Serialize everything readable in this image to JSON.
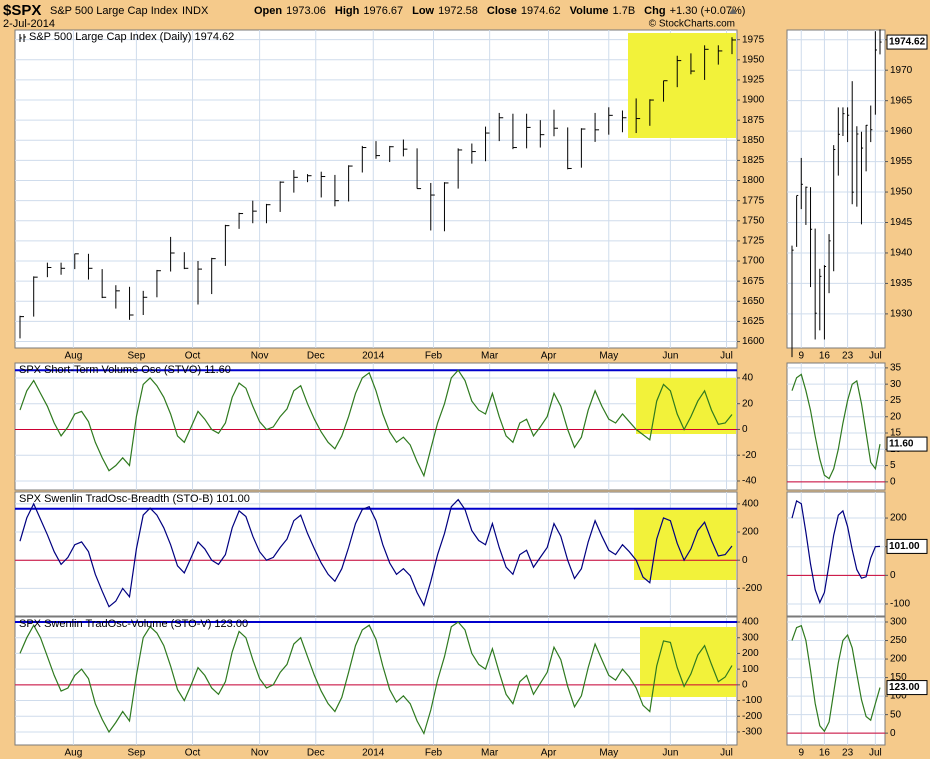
{
  "header": {
    "symbol": "$SPX",
    "name": "S&P 500 Large Cap Index",
    "exchange": "INDX",
    "date": "2-Jul-2014",
    "copyright": "© StockCharts.com",
    "quote": [
      {
        "label": "Open",
        "value": "1973.06"
      },
      {
        "label": "High",
        "value": "1976.67"
      },
      {
        "label": "Low",
        "value": "1972.58"
      },
      {
        "label": "Close",
        "value": "1974.62"
      },
      {
        "label": "Volume",
        "value": "1.7B"
      },
      {
        "label": "Chg",
        "value": "+1.30 (+0.07%)"
      }
    ]
  },
  "chart_data": [
    {
      "type": "hlc",
      "title": "S&P 500 Large Cap Index (Daily) 1974.62",
      "color": "#000000",
      "grid": true,
      "xlim": [
        0,
        52
      ],
      "ylim": [
        1592,
        1987
      ],
      "yticks": [
        1600,
        1625,
        1650,
        1675,
        1700,
        1725,
        1750,
        1775,
        1800,
        1825,
        1850,
        1875,
        1900,
        1925,
        1950,
        1975
      ],
      "xticks": [
        {
          "value": 3.9,
          "label": "Aug"
        },
        {
          "value": 8.5,
          "label": "Sep"
        },
        {
          "value": 12.6,
          "label": "Oct"
        },
        {
          "value": 17.5,
          "label": "Nov"
        },
        {
          "value": 21.6,
          "label": "Dec"
        },
        {
          "value": 25.8,
          "label": "2014"
        },
        {
          "value": 30.2,
          "label": "Feb"
        },
        {
          "value": 34.3,
          "label": "Mar"
        },
        {
          "value": 38.6,
          "label": "Apr"
        },
        {
          "value": 43.0,
          "label": "May"
        },
        {
          "value": 47.5,
          "label": "Jun"
        },
        {
          "value": 51.6,
          "label": "Jul"
        }
      ],
      "high": [
        1632,
        1681,
        1698,
        1698,
        1709,
        1709,
        1690,
        1670,
        1668,
        1663,
        1689,
        1730,
        1711,
        1700,
        1704,
        1745,
        1760,
        1775,
        1771,
        1799,
        1813,
        1808,
        1811,
        1807,
        1819,
        1843,
        1849,
        1843,
        1851,
        1840,
        1797,
        1798,
        1840,
        1846,
        1867,
        1884,
        1883,
        1883,
        1875,
        1888,
        1866,
        1865,
        1884,
        1891,
        1887,
        1902,
        1901,
        1924,
        1955,
        1958,
        1968,
        1968,
        1978
      ],
      "low": [
        1604,
        1631,
        1680,
        1683,
        1690,
        1677,
        1654,
        1641,
        1627,
        1633,
        1655,
        1687,
        1690,
        1646,
        1659,
        1694,
        1740,
        1747,
        1747,
        1761,
        1785,
        1798,
        1779,
        1768,
        1774,
        1810,
        1827,
        1823,
        1830,
        1790,
        1738,
        1737,
        1790,
        1821,
        1824,
        1849,
        1839,
        1840,
        1841,
        1855,
        1814,
        1816,
        1848,
        1857,
        1860,
        1859,
        1868,
        1898,
        1916,
        1932,
        1925,
        1944,
        1957
      ],
      "close": [
        1631,
        1680,
        1692,
        1691,
        1709,
        1691,
        1655,
        1663,
        1633,
        1655,
        1688,
        1710,
        1691,
        1690,
        1703,
        1744,
        1759,
        1762,
        1770,
        1798,
        1804,
        1806,
        1805,
        1775,
        1818,
        1841,
        1831,
        1842,
        1839,
        1790,
        1782,
        1797,
        1838,
        1836,
        1859,
        1878,
        1841,
        1866,
        1857,
        1865,
        1815,
        1864,
        1863,
        1881,
        1878,
        1877,
        1900,
        1924,
        1949,
        1936,
        1963,
        1961,
        1974.62
      ]
    },
    {
      "type": "hlc",
      "color": "#000000",
      "grid": true,
      "xlim": [
        0,
        19
      ],
      "ylim": [
        1924.4,
        1976.6
      ],
      "yticks": [
        1930,
        1935,
        1940,
        1945,
        1950,
        1955,
        1960,
        1965,
        1970,
        1975
      ],
      "xticks": [
        {
          "value": 2,
          "label": "9"
        },
        {
          "value": 7,
          "label": "16"
        },
        {
          "value": 12,
          "label": "23"
        },
        {
          "value": 18,
          "label": "Jul"
        }
      ],
      "tag": "1974.62",
      "high": [
        1941.2,
        1949.4,
        1955.6,
        1950.9,
        1950.8,
        1944.0,
        1937.4,
        1938.0,
        1943.1,
        1957.7,
        1963.9,
        1963.9,
        1963.9,
        1968.2,
        1960.8,
        1959.9,
        1961.0,
        1964.2,
        1976.4,
        1976.7
      ],
      "low": [
        1922.9,
        1941.0,
        1947.2,
        1944.6,
        1934.4,
        1925.8,
        1927.3,
        1925.8,
        1933.4,
        1937.0,
        1952.7,
        1959.2,
        1958.2,
        1948.0,
        1947.6,
        1944.7,
        1953.4,
        1958.2,
        1962.7,
        1972.6
      ],
      "close": [
        1940.46,
        1949.44,
        1951.27,
        1950.79,
        1943.89,
        1930.11,
        1936.16,
        1937.78,
        1941.99,
        1956.98,
        1959.48,
        1962.87,
        1962.61,
        1949.98,
        1959.53,
        1957.22,
        1960.96,
        1960.23,
        1973.32,
        1974.62
      ]
    },
    {
      "type": "line",
      "title": "SPX Short-Term Volume Osc (STVO) 11.60",
      "color": "#2f7a1f",
      "grid": true,
      "xlim": [
        0,
        104
      ],
      "ylim": [
        -47,
        51.6
      ],
      "yticks": [
        -40,
        -20,
        0,
        20,
        40
      ],
      "xticks": [
        7.8,
        17,
        25.2,
        35,
        43.2,
        51.6,
        60.4,
        68.6,
        77.2,
        86,
        95,
        103.2
      ],
      "show_xtick_labels": false,
      "hlines": [
        {
          "value": 46,
          "color": "#0000cc"
        },
        {
          "value": 0,
          "color": "#cc0033"
        }
      ],
      "values": [
        15,
        30,
        38,
        28,
        18,
        5,
        -5,
        2,
        12,
        14,
        6,
        -10,
        -22,
        -32,
        -28,
        -22,
        -28,
        10,
        35,
        40,
        34,
        25,
        12,
        -5,
        -10,
        2,
        14,
        8,
        0,
        -3,
        5,
        25,
        36,
        32,
        18,
        6,
        0,
        2,
        10,
        16,
        30,
        34,
        20,
        8,
        -2,
        -10,
        -15,
        -5,
        10,
        28,
        40,
        44,
        30,
        12,
        -2,
        -10,
        -6,
        -12,
        -25,
        -36,
        -15,
        5,
        20,
        40,
        46,
        38,
        22,
        15,
        12,
        28,
        10,
        -5,
        -10,
        5,
        8,
        -5,
        2,
        10,
        28,
        18,
        0,
        -14,
        -6,
        15,
        30,
        18,
        8,
        5,
        12,
        6,
        0,
        -4,
        -8,
        22,
        35,
        30,
        12,
        0,
        10,
        22,
        30,
        15,
        4,
        5,
        11.6
      ]
    },
    {
      "type": "line",
      "color": "#2f7a1f",
      "grid": true,
      "xlim": [
        0,
        19
      ],
      "ylim": [
        -2.5,
        36.5
      ],
      "yticks": [
        0,
        5,
        10,
        15,
        20,
        25,
        30,
        35
      ],
      "xticks": [
        2,
        7,
        12,
        18
      ],
      "show_xtick_labels": false,
      "hlines": [
        {
          "value": 0,
          "color": "#cc0033"
        }
      ],
      "tag": "11.60",
      "values": [
        28,
        32,
        33,
        28,
        22,
        14,
        7,
        2,
        1,
        4,
        10,
        18,
        25,
        30,
        31,
        24,
        15,
        6,
        4,
        11.6
      ]
    },
    {
      "type": "line",
      "title": "SPX Swenlin TradOsc-Breadth (STO-B) 101.00",
      "color": "#000080",
      "grid": true,
      "xlim": [
        0,
        104
      ],
      "ylim": [
        -396,
        484
      ],
      "yticks": [
        -200,
        0,
        200,
        400
      ],
      "xticks": [
        7.8,
        17,
        25.2,
        35,
        43.2,
        51.6,
        60.4,
        68.6,
        77.2,
        86,
        95,
        103.2
      ],
      "show_xtick_labels": false,
      "hlines": [
        {
          "value": 365,
          "color": "#0000cc"
        },
        {
          "value": 0,
          "color": "#cc0033"
        }
      ],
      "values": [
        135,
        300,
        400,
        290,
        180,
        60,
        -30,
        20,
        110,
        130,
        60,
        -100,
        -220,
        -330,
        -290,
        -200,
        -260,
        80,
        320,
        370,
        320,
        230,
        110,
        -40,
        -90,
        20,
        130,
        80,
        0,
        -30,
        40,
        230,
        350,
        310,
        170,
        60,
        0,
        20,
        90,
        150,
        280,
        320,
        190,
        80,
        -20,
        -100,
        -150,
        -60,
        90,
        260,
        360,
        380,
        280,
        110,
        -20,
        -100,
        -60,
        -110,
        -230,
        -320,
        -150,
        40,
        190,
        380,
        430,
        360,
        210,
        140,
        110,
        260,
        90,
        -50,
        -100,
        40,
        70,
        -50,
        20,
        90,
        260,
        170,
        0,
        -130,
        -60,
        130,
        280,
        170,
        70,
        40,
        110,
        60,
        0,
        -120,
        -160,
        150,
        300,
        280,
        120,
        0,
        80,
        210,
        270,
        140,
        30,
        40,
        101
      ]
    },
    {
      "type": "line",
      "color": "#000080",
      "grid": true,
      "xlim": [
        0,
        19
      ],
      "ylim": [
        -142,
        291
      ],
      "yticks": [
        -100,
        0,
        100,
        200
      ],
      "xticks": [
        2,
        7,
        12,
        18
      ],
      "show_xtick_labels": false,
      "hlines": [
        {
          "value": 0,
          "color": "#cc0033"
        }
      ],
      "tag": "101.00",
      "values": [
        200,
        260,
        250,
        150,
        40,
        -50,
        -95,
        -60,
        40,
        140,
        210,
        225,
        170,
        90,
        20,
        -10,
        -5,
        60,
        100,
        101
      ]
    },
    {
      "type": "line",
      "title": "SPX Swenlin TradOsc-Volume (STO-V) 123.00",
      "color": "#2f7a1f",
      "grid": true,
      "xlim": [
        0,
        104
      ],
      "ylim": [
        -383,
        432
      ],
      "yticks": [
        -300,
        -200,
        -100,
        0,
        100,
        200,
        300,
        400
      ],
      "xticks": [
        {
          "value": 7.8,
          "label": "Aug"
        },
        {
          "value": 17,
          "label": "Sep"
        },
        {
          "value": 25.2,
          "label": "Oct"
        },
        {
          "value": 35,
          "label": "Nov"
        },
        {
          "value": 43.2,
          "label": "Dec"
        },
        {
          "value": 51.6,
          "label": "2014"
        },
        {
          "value": 60.4,
          "label": "Feb"
        },
        {
          "value": 68.6,
          "label": "Mar"
        },
        {
          "value": 77.2,
          "label": "Apr"
        },
        {
          "value": 86,
          "label": "May"
        },
        {
          "value": 95,
          "label": "Jun"
        },
        {
          "value": 103.2,
          "label": "Jul"
        }
      ],
      "hlines": [
        {
          "value": 400,
          "color": "#0000cc"
        },
        {
          "value": 0,
          "color": "#cc0033"
        }
      ],
      "values": [
        200,
        300,
        380,
        300,
        180,
        60,
        -40,
        -20,
        60,
        100,
        40,
        -120,
        -220,
        -300,
        -240,
        -170,
        -230,
        60,
        300,
        370,
        330,
        250,
        120,
        -30,
        -100,
        0,
        110,
        60,
        -20,
        -60,
        20,
        210,
        340,
        300,
        160,
        40,
        -20,
        0,
        80,
        130,
        260,
        300,
        180,
        60,
        -40,
        -120,
        -170,
        -80,
        80,
        250,
        350,
        380,
        290,
        120,
        -30,
        -110,
        -70,
        -120,
        -230,
        -310,
        -160,
        30,
        180,
        370,
        400,
        350,
        200,
        130,
        100,
        230,
        80,
        -60,
        -120,
        20,
        60,
        -60,
        10,
        80,
        240,
        160,
        -10,
        -140,
        -70,
        110,
        260,
        160,
        60,
        30,
        100,
        50,
        -20,
        -130,
        -170,
        120,
        280,
        270,
        110,
        -10,
        70,
        190,
        250,
        130,
        20,
        50,
        123
      ]
    },
    {
      "type": "line",
      "color": "#2f7a1f",
      "grid": true,
      "xlim": [
        0,
        19
      ],
      "ylim": [
        -32,
        313.5
      ],
      "yticks": [
        0,
        50,
        100,
        150,
        200,
        250,
        300
      ],
      "xticks": [
        {
          "value": 2,
          "label": "9"
        },
        {
          "value": 7,
          "label": "16"
        },
        {
          "value": 12,
          "label": "23"
        },
        {
          "value": 18,
          "label": "Jul"
        }
      ],
      "hlines": [
        {
          "value": 0,
          "color": "#cc0033"
        }
      ],
      "tag": "123.00",
      "values": [
        250,
        285,
        290,
        250,
        170,
        80,
        20,
        5,
        30,
        110,
        190,
        250,
        265,
        230,
        160,
        90,
        45,
        35,
        80,
        123
      ]
    }
  ]
}
